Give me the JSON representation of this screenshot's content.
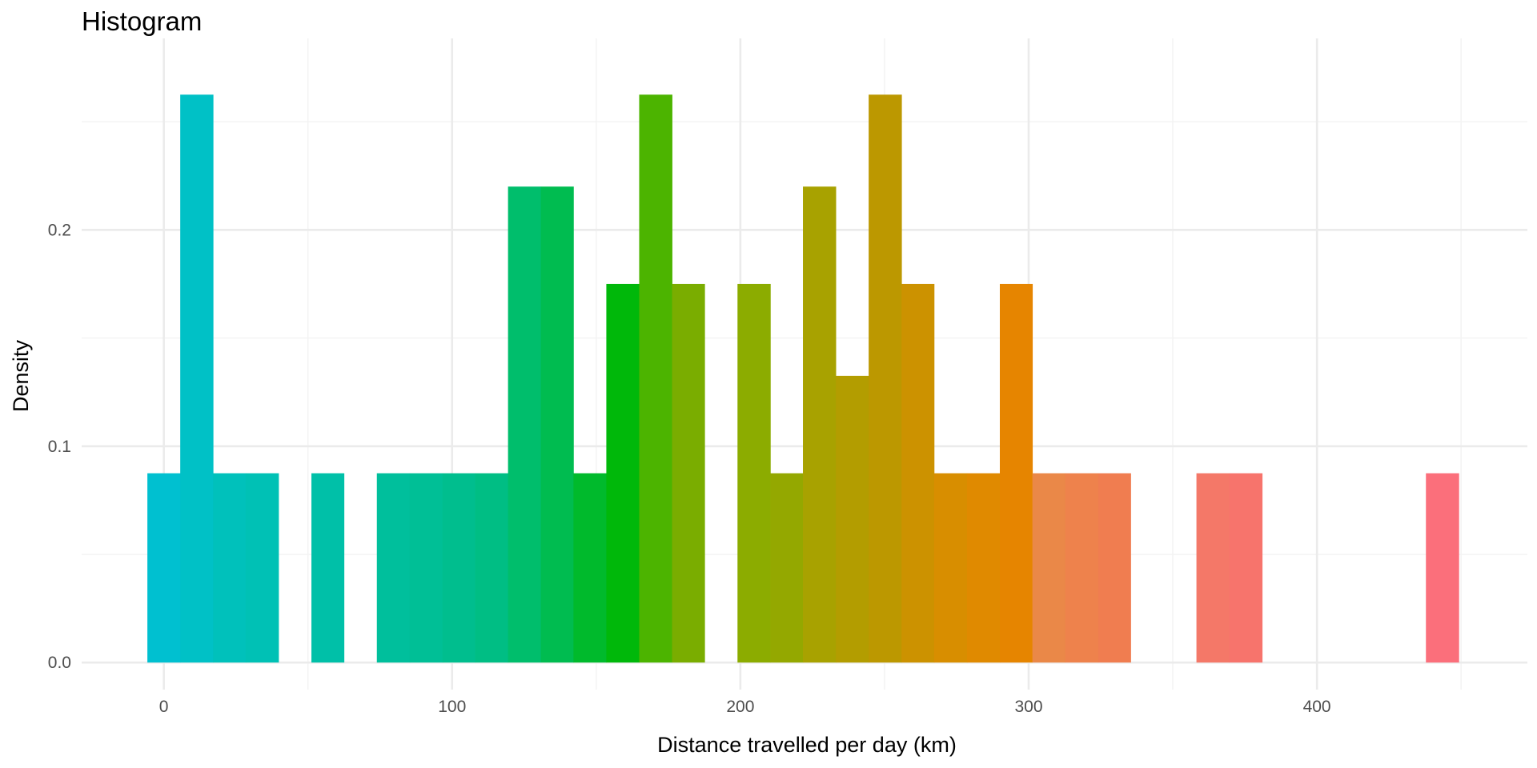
{
  "chart_data": {
    "type": "bar",
    "title": "Histogram",
    "xlabel": "Distance travelled per day (km)",
    "ylabel": "Density",
    "xlim": [
      -28.5,
      473
    ],
    "ylim": [
      -0.0125,
      0.2885
    ],
    "x_ticks": [
      0,
      100,
      200,
      300,
      400
    ],
    "x_minor_ticks": [
      50,
      150,
      250,
      350,
      450
    ],
    "y_ticks": [
      0.0,
      0.1,
      0.2
    ],
    "y_tick_labels": [
      "0.0",
      "0.1",
      "0.2"
    ],
    "y_minor_ticks": [
      0.05,
      0.15,
      0.25
    ],
    "grid": true,
    "legend": "none",
    "bin_width": 11.37,
    "bins": [
      {
        "x_start": -5.7,
        "x_end": 5.7,
        "density": 0.0875,
        "color": "#00C0D0"
      },
      {
        "x_start": 5.7,
        "x_end": 17.1,
        "density": 0.2625,
        "color": "#00C1C6"
      },
      {
        "x_start": 17.1,
        "x_end": 28.4,
        "density": 0.0875,
        "color": "#00C1BB"
      },
      {
        "x_start": 28.4,
        "x_end": 39.8,
        "density": 0.0875,
        "color": "#00C1B5"
      },
      {
        "x_start": 51.2,
        "x_end": 62.5,
        "density": 0.0875,
        "color": "#00C0A8"
      },
      {
        "x_start": 73.9,
        "x_end": 85.3,
        "density": 0.0875,
        "color": "#00BF9C"
      },
      {
        "x_start": 85.3,
        "x_end": 96.7,
        "density": 0.0875,
        "color": "#00BF96"
      },
      {
        "x_start": 96.7,
        "x_end": 108.0,
        "density": 0.0875,
        "color": "#00BE8E"
      },
      {
        "x_start": 108.0,
        "x_end": 119.4,
        "density": 0.0875,
        "color": "#00BE84"
      },
      {
        "x_start": 119.4,
        "x_end": 130.8,
        "density": 0.22,
        "color": "#00BE6C"
      },
      {
        "x_start": 130.8,
        "x_end": 142.1,
        "density": 0.22,
        "color": "#00BC50"
      },
      {
        "x_start": 142.1,
        "x_end": 153.5,
        "density": 0.0875,
        "color": "#00BA2C"
      },
      {
        "x_start": 153.5,
        "x_end": 164.9,
        "density": 0.175,
        "color": "#00B80A"
      },
      {
        "x_start": 164.9,
        "x_end": 176.3,
        "density": 0.2625,
        "color": "#4CB400"
      },
      {
        "x_start": 176.3,
        "x_end": 187.6,
        "density": 0.175,
        "color": "#7AAD00"
      },
      {
        "x_start": 199.0,
        "x_end": 210.4,
        "density": 0.175,
        "color": "#8CAC00"
      },
      {
        "x_start": 210.4,
        "x_end": 221.7,
        "density": 0.0875,
        "color": "#94A800"
      },
      {
        "x_start": 221.7,
        "x_end": 233.1,
        "density": 0.22,
        "color": "#A8A200"
      },
      {
        "x_start": 233.1,
        "x_end": 244.5,
        "density": 0.1325,
        "color": "#B39D00"
      },
      {
        "x_start": 244.5,
        "x_end": 255.9,
        "density": 0.2625,
        "color": "#BC9800"
      },
      {
        "x_start": 255.9,
        "x_end": 267.2,
        "density": 0.175,
        "color": "#CC9200"
      },
      {
        "x_start": 267.2,
        "x_end": 278.6,
        "density": 0.0875,
        "color": "#D88E00"
      },
      {
        "x_start": 278.6,
        "x_end": 290.0,
        "density": 0.0875,
        "color": "#E08A00"
      },
      {
        "x_start": 290.0,
        "x_end": 301.3,
        "density": 0.175,
        "color": "#E68500"
      },
      {
        "x_start": 301.3,
        "x_end": 312.7,
        "density": 0.0875,
        "color": "#EA8848"
      },
      {
        "x_start": 312.7,
        "x_end": 324.1,
        "density": 0.0875,
        "color": "#EE824C"
      },
      {
        "x_start": 324.1,
        "x_end": 335.4,
        "density": 0.0875,
        "color": "#F07D50"
      },
      {
        "x_start": 358.2,
        "x_end": 369.6,
        "density": 0.0875,
        "color": "#F47868"
      },
      {
        "x_start": 369.6,
        "x_end": 381.0,
        "density": 0.0875,
        "color": "#F7746C"
      },
      {
        "x_start": 437.8,
        "x_end": 449.2,
        "density": 0.0875,
        "color": "#FB6F7B"
      }
    ]
  }
}
